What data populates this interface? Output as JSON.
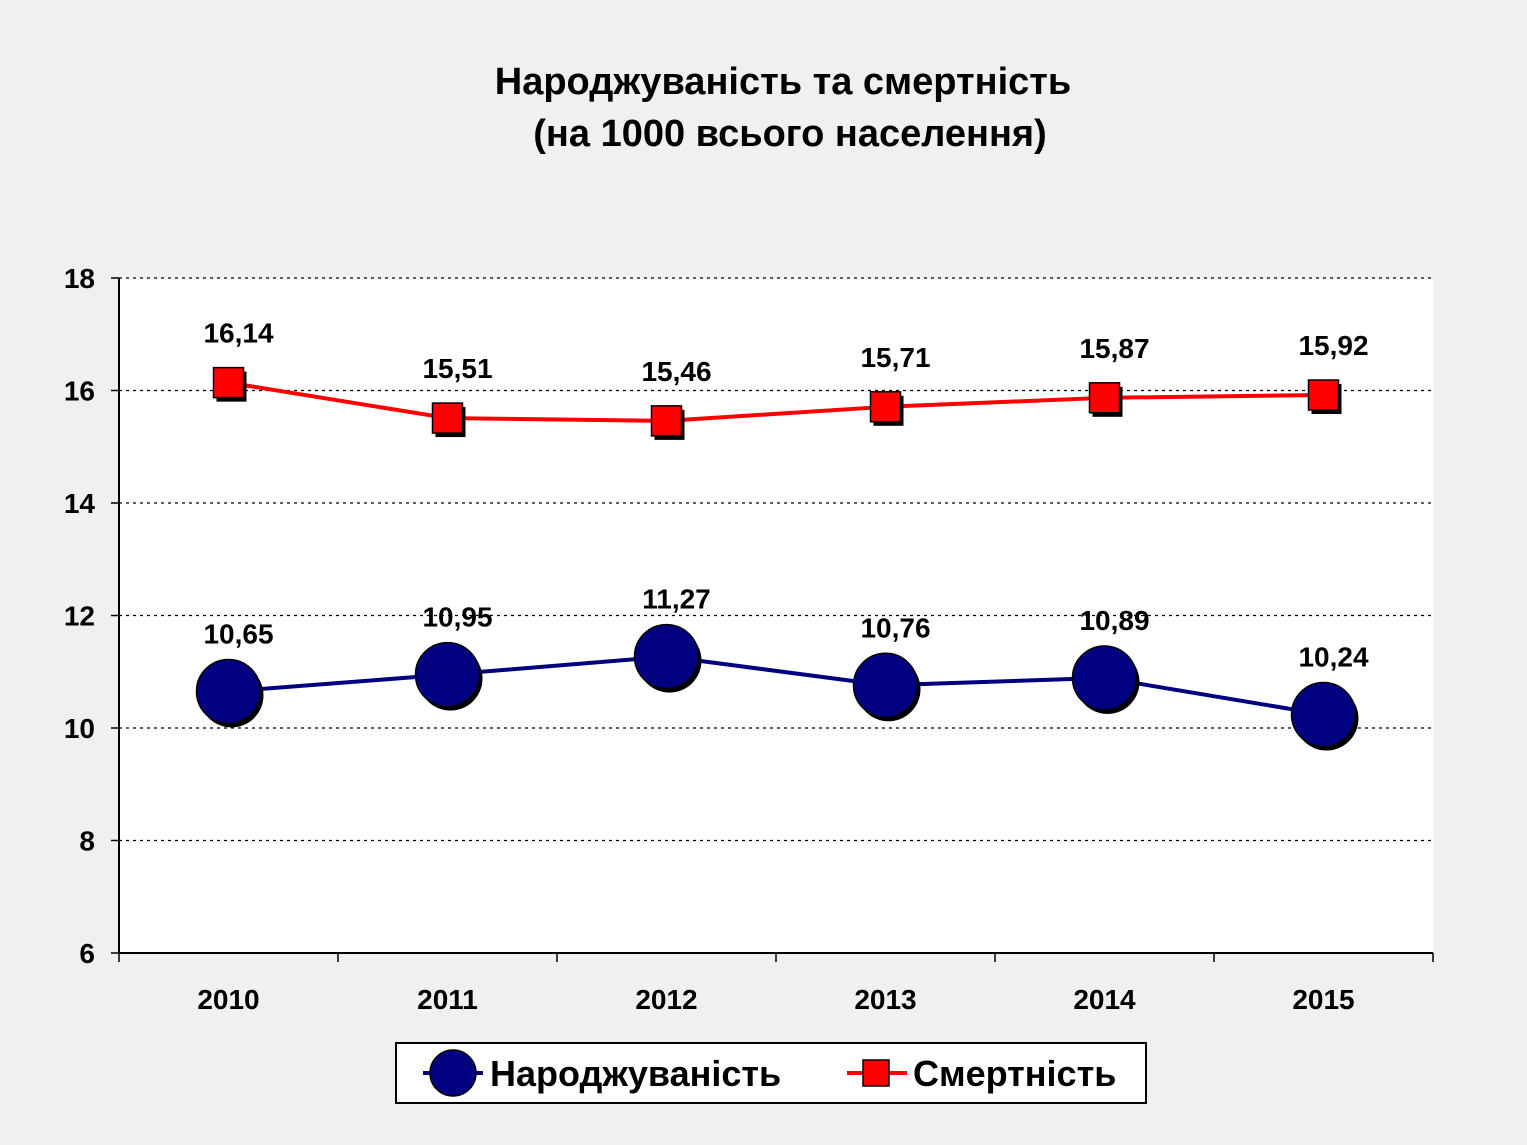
{
  "chart_data": {
    "type": "line",
    "title_line1": "Народжуваність та смертність",
    "title_line2": "(на 1000 всього населення)",
    "xlabel": "",
    "ylabel": "",
    "categories": [
      "2010",
      "2011",
      "2012",
      "2013",
      "2014",
      "2015"
    ],
    "ylim": [
      6,
      18
    ],
    "yticks": [
      "6",
      "8",
      "10",
      "12",
      "14",
      "16",
      "18"
    ],
    "grid": true,
    "legend_position": "bottom",
    "series": [
      {
        "name": "Народжуваність",
        "values": [
          10.65,
          10.95,
          11.27,
          10.76,
          10.89,
          10.24
        ],
        "labels": [
          "10,65",
          "10,95",
          "11,27",
          "10,76",
          "10,89",
          "10,24"
        ],
        "color": "#000080",
        "marker": "circle"
      },
      {
        "name": "Смертність",
        "values": [
          16.14,
          15.51,
          15.46,
          15.71,
          15.87,
          15.92
        ],
        "labels": [
          "16,14",
          "15,51",
          "15,46",
          "15,71",
          "15,87",
          "15,92"
        ],
        "color": "#ff0000",
        "marker": "square"
      }
    ]
  }
}
